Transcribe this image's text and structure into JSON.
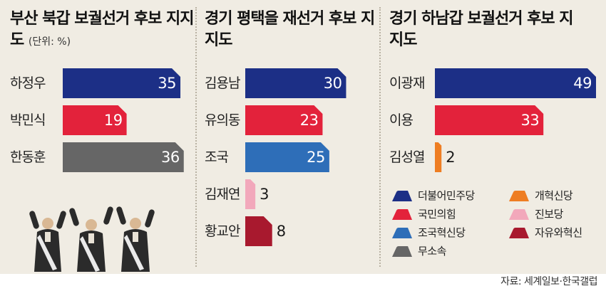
{
  "colors": {
    "background": "#f0ece3",
    "더불어민주당": "#1c2f86",
    "국민의힘": "#e3223b",
    "조국혁신당": "#2e6eb8",
    "개혁신당": "#ee7d22",
    "진보당": "#f2a8bb",
    "자유와혁신": "#a8192e",
    "무소속": "#666666"
  },
  "chart_data": [
    {
      "type": "bar",
      "title": "부산 북갑 보궐선거 후보 지지도",
      "unit_note": "(단위: %)",
      "categories": [
        "하정우",
        "박민식",
        "한동훈"
      ],
      "values": [
        35,
        19,
        36
      ],
      "parties": [
        "더불어민주당",
        "국민의힘",
        "무소속"
      ],
      "xlim": [
        0,
        50
      ]
    },
    {
      "type": "bar",
      "title": "경기 평택을 재선거 후보 지지도",
      "categories": [
        "김용남",
        "유의동",
        "조국",
        "김재연",
        "황교안"
      ],
      "values": [
        30,
        23,
        25,
        3,
        8
      ],
      "parties": [
        "더불어민주당",
        "국민의힘",
        "조국혁신당",
        "진보당",
        "자유와혁신"
      ],
      "xlim": [
        0,
        50
      ]
    },
    {
      "type": "bar",
      "title": "경기 하남갑 보궐선거 후보 지지도",
      "categories": [
        "이광재",
        "이용",
        "김성열"
      ],
      "values": [
        49,
        33,
        2
      ],
      "parties": [
        "더불어민주당",
        "국민의힘",
        "개혁신당"
      ],
      "xlim": [
        0,
        50
      ]
    }
  ],
  "legend": [
    {
      "party": "더불어민주당",
      "label": "더불어민주당"
    },
    {
      "party": "개혁신당",
      "label": "개혁신당"
    },
    {
      "party": "국민의힘",
      "label": "국민의힘"
    },
    {
      "party": "진보당",
      "label": "진보당"
    },
    {
      "party": "조국혁신당",
      "label": "조국혁신당"
    },
    {
      "party": "자유와혁신",
      "label": "자유와혁신"
    },
    {
      "party": "무소속",
      "label": "무소속"
    }
  ],
  "illustration": "candidates-cheering-illustration",
  "source": "자료: 세계일보·한국갤럽"
}
